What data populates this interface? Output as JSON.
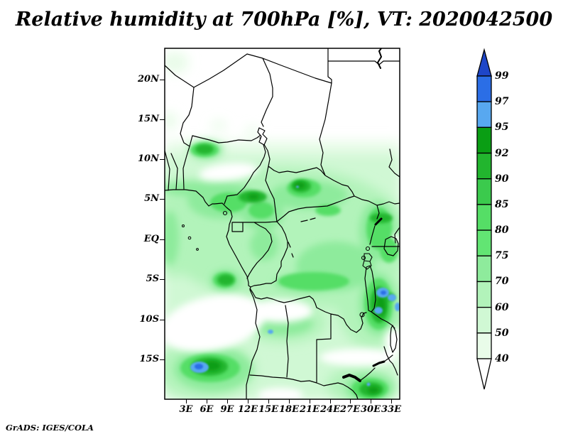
{
  "title": "Relative humidity at 700hPa [%], VT: 2020042500",
  "credit": "GrADS: IGES/COLA",
  "axes": {
    "y_tick_labels": [
      "20N",
      "15N",
      "10N",
      "5N",
      "EQ",
      "5S",
      "10S",
      "15S"
    ],
    "x_tick_labels": [
      "3E",
      "6E",
      "9E",
      "12E",
      "15E",
      "18E",
      "21E",
      "24E",
      "27E",
      "30E",
      "33E"
    ]
  },
  "colorbar": {
    "tick_labels": [
      "99",
      "97",
      "95",
      "92",
      "90",
      "85",
      "80",
      "75",
      "70",
      "60",
      "50",
      "40"
    ],
    "segment_colors_top_to_bottom": [
      "#2b6ee6",
      "#58a8f0",
      "#0a9e14",
      "#22b52e",
      "#3bca4d",
      "#55de66",
      "#62e573",
      "#8eeb9c",
      "#b2f3ba",
      "#d0f8d4",
      "#e9fce9"
    ],
    "above_max_color": "#1e46c8",
    "below_min_color": "#ffffff"
  },
  "chart_data": {
    "type": "heatmap",
    "title": "Relative humidity at 700hPa [%], VT: 2020042500",
    "units": "%",
    "variable": "Relative humidity",
    "level": "700hPa",
    "valid_time": "2020042500",
    "x_axis": {
      "ticks": [
        "3E",
        "6E",
        "9E",
        "12E",
        "15E",
        "18E",
        "21E",
        "24E",
        "27E",
        "30E",
        "33E"
      ],
      "range_deg_east": [
        0,
        34
      ]
    },
    "y_axis": {
      "ticks": [
        "20N",
        "15N",
        "10N",
        "5N",
        "EQ",
        "5S",
        "10S",
        "15S"
      ],
      "range_deg_north": [
        -20,
        24
      ]
    },
    "levels": [
      40,
      50,
      60,
      70,
      75,
      80,
      85,
      90,
      92,
      95,
      97,
      99
    ],
    "level_colors": {
      "below_40": "#ffffff",
      "40_50": "#e9fce9",
      "50_60": "#d0f8d4",
      "60_70": "#b2f3ba",
      "70_75": "#8eeb9c",
      "75_80": "#62e573",
      "80_85": "#55de66",
      "85_90": "#3bca4d",
      "90_92": "#22b52e",
      "92_95": "#0a9e14",
      "95_97": "#58a8f0",
      "97_99": "#2b6ee6",
      "above_99": "#1e46c8"
    },
    "legend_position": "right vertical colorbar with end arrows",
    "notable_features": [
      "Dry (<40%) over the Sahara north of about 13N",
      "Humid band 75-95% along ~5N across Cameroon and Central African Republic, core >92% near 20E,7N",
      "Humid core >90% near 11-14E around 5-6N and near 5-6E,11N",
      "Very humid blue spots >95% over SE Atlantic near 5-7E,15-17S",
      "Very humid blue spots >95% near 30-33E,10-13S around Lake Tanganyika and Lake Rukwa",
      "Small >95% spot near 15E,13.5S and tiny spot near 30E,19S",
      "Dry wedge <50% over coastal Angola around 10-14E,6-13S",
      "Dry band <50% near 23-33E around 14-15S",
      "Humid >85% around Lake Victoria and Uganda"
    ]
  }
}
